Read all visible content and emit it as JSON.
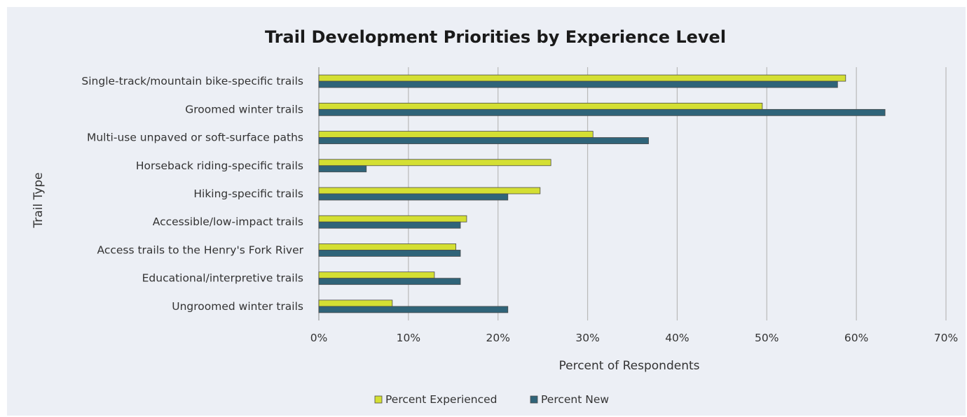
{
  "chart_data": {
    "type": "bar",
    "orientation": "horizontal",
    "title": "Trail Development Priorities by Experience Level",
    "xlabel": "Percent of Respondents",
    "ylabel": "Trail Type",
    "xlim": [
      0,
      70
    ],
    "x_ticks": [
      0,
      10,
      20,
      30,
      40,
      50,
      60,
      70
    ],
    "x_tick_labels": [
      "0%",
      "10%",
      "20%",
      "30%",
      "40%",
      "50%",
      "60%",
      "70%"
    ],
    "grid": "vertical",
    "legend_position": "bottom",
    "categories": [
      "Single-track/mountain bike-specific trails",
      "Groomed winter trails",
      "Multi-use unpaved or soft-surface paths",
      "Horseback riding-specific trails",
      "Hiking-specific trails",
      "Accessible/low-impact trails",
      "Access trails to the Henry's Fork River",
      "Educational/interpretive trails",
      "Ungroomed winter trails"
    ],
    "series": [
      {
        "name": "Percent Experienced",
        "color": "#d4df33",
        "values": [
          58.8,
          49.5,
          30.6,
          25.9,
          24.7,
          16.5,
          15.3,
          12.9,
          8.2
        ]
      },
      {
        "name": "Percent New",
        "color": "#2f6479",
        "values": [
          57.9,
          63.2,
          36.8,
          5.3,
          21.1,
          15.8,
          15.8,
          15.8,
          21.1
        ]
      }
    ]
  }
}
